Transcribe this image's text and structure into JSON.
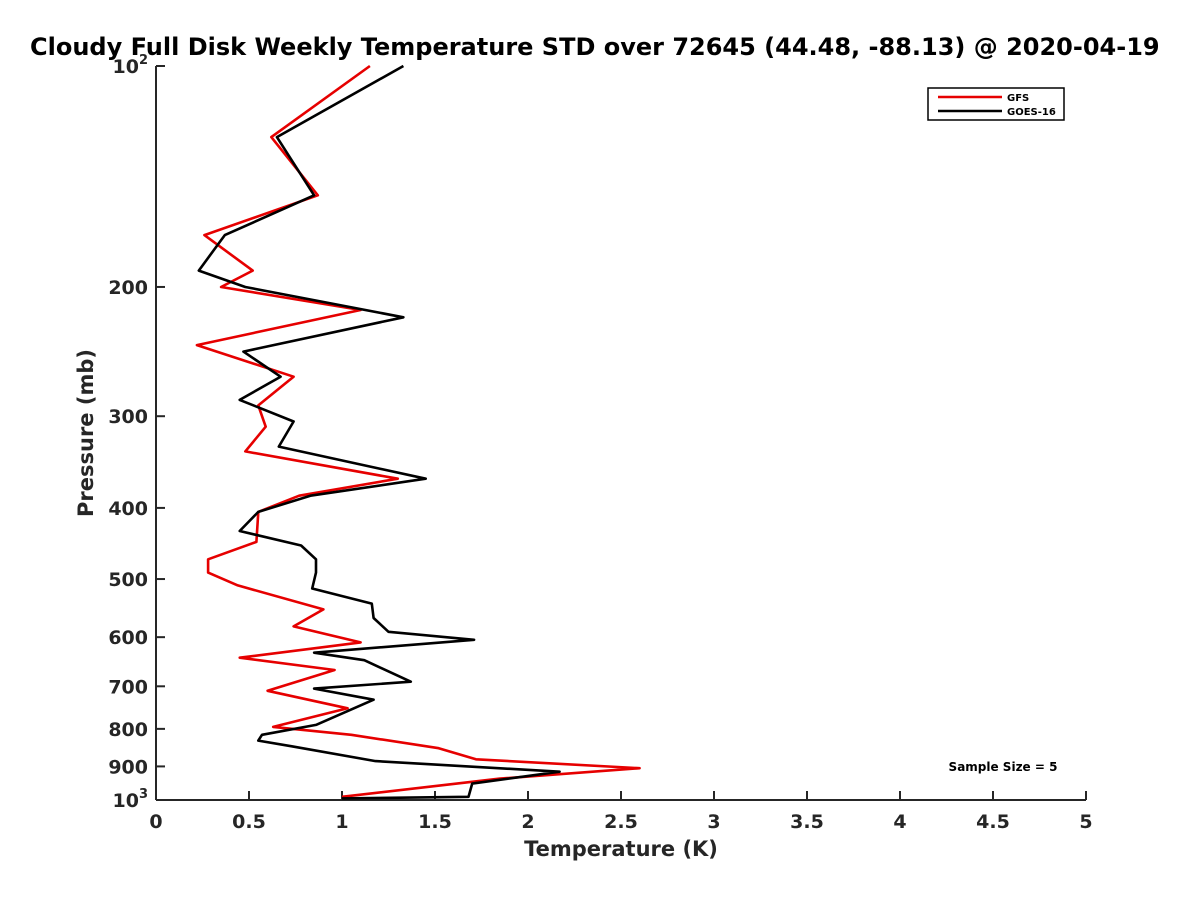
{
  "chart_data": {
    "type": "line",
    "title": "Cloudy Full Disk Weekly Temperature STD over 72645 (44.48, -88.13) @ 2020-04-19",
    "xlabel": "Temperature (K)",
    "ylabel": "Pressure (mb)",
    "xlim": [
      0,
      5
    ],
    "ylim": [
      100,
      1000
    ],
    "y_scale": "log",
    "y_reversed": true,
    "x_ticks": [
      "0",
      "0.5",
      "1",
      "1.5",
      "2",
      "2.5",
      "3",
      "3.5",
      "4",
      "4.5",
      "5"
    ],
    "y_ticks": [
      {
        "value": 100,
        "base": "10",
        "exp": "2"
      },
      {
        "value": 200,
        "label": "200"
      },
      {
        "value": 300,
        "label": "300"
      },
      {
        "value": 400,
        "label": "400"
      },
      {
        "value": 500,
        "label": "500"
      },
      {
        "value": 600,
        "label": "600"
      },
      {
        "value": 700,
        "label": "700"
      },
      {
        "value": 800,
        "label": "800"
      },
      {
        "value": 900,
        "label": "900"
      },
      {
        "value": 1000,
        "base": "10",
        "exp": "3"
      }
    ],
    "grid": false,
    "legend_position": "top-right",
    "annotation": "Sample Size = 5",
    "series": [
      {
        "name": "GFS",
        "color": "#e60000",
        "points": [
          [
            1.15,
            100
          ],
          [
            0.62,
            125
          ],
          [
            0.87,
            150
          ],
          [
            0.26,
            170
          ],
          [
            0.52,
            190
          ],
          [
            0.35,
            200
          ],
          [
            1.1,
            215
          ],
          [
            0.22,
            240
          ],
          [
            0.74,
            265
          ],
          [
            0.55,
            290
          ],
          [
            0.59,
            310
          ],
          [
            0.48,
            335
          ],
          [
            1.3,
            365
          ],
          [
            0.77,
            385
          ],
          [
            0.55,
            405
          ],
          [
            0.54,
            445
          ],
          [
            0.28,
            470
          ],
          [
            0.28,
            490
          ],
          [
            0.44,
            510
          ],
          [
            0.9,
            550
          ],
          [
            0.74,
            580
          ],
          [
            1.1,
            610
          ],
          [
            0.45,
            640
          ],
          [
            0.96,
            665
          ],
          [
            0.6,
            710
          ],
          [
            1.03,
            750
          ],
          [
            0.63,
            795
          ],
          [
            1.05,
            815
          ],
          [
            1.52,
            850
          ],
          [
            1.72,
            880
          ],
          [
            2.6,
            905
          ],
          [
            1.85,
            935
          ],
          [
            1.0,
            990
          ]
        ]
      },
      {
        "name": "GOES-16",
        "color": "#000000",
        "points": [
          [
            1.33,
            100
          ],
          [
            0.65,
            125
          ],
          [
            0.85,
            150
          ],
          [
            0.37,
            170
          ],
          [
            0.23,
            190
          ],
          [
            0.48,
            200
          ],
          [
            1.33,
            220
          ],
          [
            0.47,
            245
          ],
          [
            0.67,
            265
          ],
          [
            0.45,
            285
          ],
          [
            0.74,
            305
          ],
          [
            0.66,
            330
          ],
          [
            1.45,
            365
          ],
          [
            0.83,
            385
          ],
          [
            0.55,
            405
          ],
          [
            0.45,
            430
          ],
          [
            0.78,
            450
          ],
          [
            0.86,
            470
          ],
          [
            0.86,
            490
          ],
          [
            0.84,
            515
          ],
          [
            1.16,
            540
          ],
          [
            1.17,
            565
          ],
          [
            1.25,
            590
          ],
          [
            1.71,
            605
          ],
          [
            0.85,
            630
          ],
          [
            1.12,
            645
          ],
          [
            1.37,
            690
          ],
          [
            0.85,
            705
          ],
          [
            1.17,
            730
          ],
          [
            0.86,
            790
          ],
          [
            0.57,
            815
          ],
          [
            0.55,
            830
          ],
          [
            0.73,
            845
          ],
          [
            1.18,
            885
          ],
          [
            2.17,
            915
          ],
          [
            1.7,
            950
          ],
          [
            1.68,
            990
          ],
          [
            1.0,
            995
          ]
        ]
      }
    ]
  }
}
